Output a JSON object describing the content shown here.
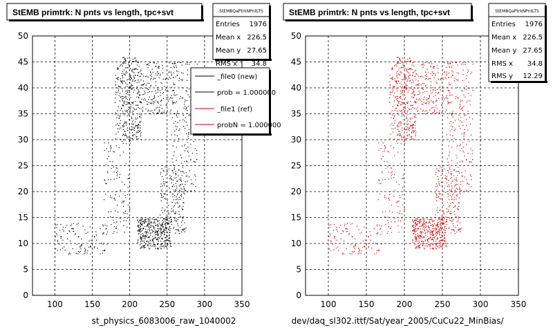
{
  "charts": [
    {
      "title": "StEMB primtrk: N pnts vs length, tpc+svt",
      "stats": {
        "name": "StEMBQaPtrkNPntLTS",
        "rows": [
          {
            "label": "Entries",
            "value": "1976"
          },
          {
            "label": "Mean x",
            "value": "226.5"
          },
          {
            "label": "Mean y",
            "value": "27.65"
          },
          {
            "label": "RMS x",
            "value": "34.8"
          }
        ]
      },
      "legend": {
        "entries": [
          {
            "label": "_file0 (new)",
            "color": "#000000"
          },
          {
            "label": "prob = 1.000000",
            "color": "#000000"
          },
          {
            "label": "_file1 (ref)",
            "color": "#cc0000"
          },
          {
            "label": "probN = 1.000000",
            "color": "#cc0000"
          }
        ]
      },
      "xlabel": "st_physics_6083006_raw_1040002",
      "point_color": "#000000"
    },
    {
      "title": "StEMB primtrk: N pnts vs length, tpc+svt",
      "stats": {
        "name": "StEMBQaPtrkNPntLTS",
        "rows": [
          {
            "label": "Entries",
            "value": "1976"
          },
          {
            "label": "Mean x",
            "value": "226.5"
          },
          {
            "label": "Mean y",
            "value": "27.65"
          },
          {
            "label": "RMS x",
            "value": "34.8"
          },
          {
            "label": "RMS y",
            "value": "12.29"
          }
        ]
      },
      "legend": null,
      "xlabel": "dev/daq_sl302.ittf/Sat/year_2005/CuCu22_MinBias/",
      "point_color": "#cc0000"
    }
  ],
  "chart_data": [
    {
      "type": "scatter",
      "title": "StEMB primtrk: N pnts vs length, tpc+svt",
      "xlabel": "st_physics_6083006_raw_1040002",
      "ylabel": "",
      "xlim": [
        70,
        350
      ],
      "ylim": [
        0,
        50
      ],
      "xticks": [
        100,
        150,
        200,
        250,
        300,
        350
      ],
      "yticks": [
        0,
        5,
        10,
        15,
        20,
        25,
        30,
        35,
        40,
        45,
        50
      ],
      "grid": true,
      "entries": 1976,
      "mean_x": 226.5,
      "mean_y": 27.65,
      "rms_x": 34.8,
      "clusters": [
        {
          "x_range": [
            180,
            215
          ],
          "y_range": [
            30,
            46
          ],
          "density": "high"
        },
        {
          "x_range": [
            215,
            260
          ],
          "y_range": [
            35,
            45
          ],
          "density": "medium"
        },
        {
          "x_range": [
            255,
            290
          ],
          "y_range": [
            20,
            45
          ],
          "density": "medium"
        },
        {
          "x_range": [
            165,
            200
          ],
          "y_range": [
            12,
            30
          ],
          "density": "low"
        },
        {
          "x_range": [
            210,
            255
          ],
          "y_range": [
            9,
            15
          ],
          "density": "high"
        },
        {
          "x_range": [
            100,
            170
          ],
          "y_range": [
            8,
            14
          ],
          "density": "low"
        },
        {
          "x_range": [
            240,
            275
          ],
          "y_range": [
            12,
            25
          ],
          "density": "medium"
        }
      ]
    },
    {
      "type": "scatter",
      "title": "StEMB primtrk: N pnts vs length, tpc+svt",
      "xlabel": "dev/daq_sl302.ittf/Sat/year_2005/CuCu22_MinBias/",
      "ylabel": "",
      "xlim": [
        70,
        350
      ],
      "ylim": [
        0,
        50
      ],
      "xticks": [
        100,
        150,
        200,
        250,
        300,
        350
      ],
      "yticks": [
        0,
        5,
        10,
        15,
        20,
        25,
        30,
        35,
        40,
        45,
        50
      ],
      "grid": true,
      "entries": 1976,
      "mean_x": 226.5,
      "mean_y": 27.65,
      "rms_x": 34.8,
      "rms_y": 12.29,
      "clusters": [
        {
          "x_range": [
            180,
            215
          ],
          "y_range": [
            30,
            46
          ],
          "density": "high"
        },
        {
          "x_range": [
            215,
            260
          ],
          "y_range": [
            35,
            45
          ],
          "density": "medium"
        },
        {
          "x_range": [
            255,
            290
          ],
          "y_range": [
            20,
            45
          ],
          "density": "medium"
        },
        {
          "x_range": [
            165,
            200
          ],
          "y_range": [
            12,
            30
          ],
          "density": "low"
        },
        {
          "x_range": [
            210,
            255
          ],
          "y_range": [
            9,
            15
          ],
          "density": "high"
        },
        {
          "x_range": [
            100,
            170
          ],
          "y_range": [
            8,
            14
          ],
          "density": "low"
        },
        {
          "x_range": [
            240,
            275
          ],
          "y_range": [
            12,
            25
          ],
          "density": "medium"
        }
      ]
    }
  ]
}
